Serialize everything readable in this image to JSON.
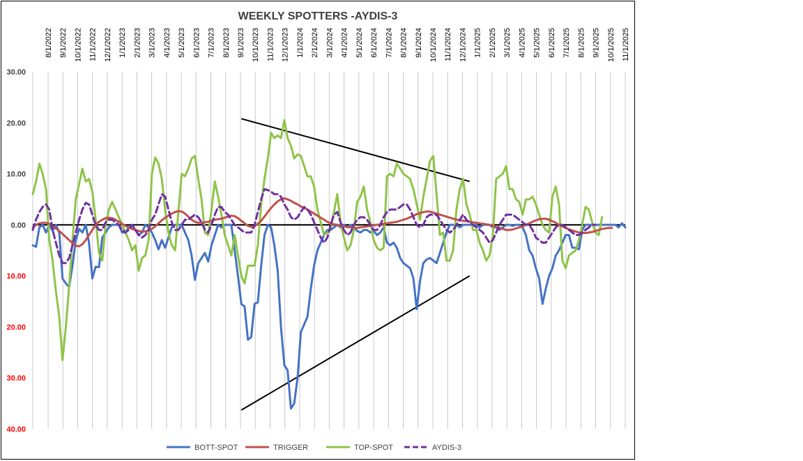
{
  "chart_data": {
    "type": "line",
    "title": "WEEKLY SPOTTERS -AYDIS-3",
    "y_tick_labels": [
      "30.00",
      "20.00",
      "10.00",
      "0.00",
      "10.00",
      "20.00",
      "30.00",
      "40.00"
    ],
    "y_tick_values": [
      30,
      20,
      10,
      0,
      -10,
      -20,
      -30,
      -40
    ],
    "y_tick_colors": [
      "#404040",
      "#404040",
      "#404040",
      "#404040",
      "#ff0000",
      "#ff0000",
      "#ff0000",
      "#ff0000"
    ],
    "ylim": [
      -40,
      30
    ],
    "x_tick_labels": [
      "8/1/2022",
      "9/1/2022",
      "10/1/2022",
      "11/1/2022",
      "12/1/2022",
      "1/1/2023",
      "2/1/2023",
      "3/1/2023",
      "4/1/2023",
      "5/1/2023",
      "6/1/2023",
      "7/1/2023",
      "8/1/2023",
      "9/1/2023",
      "10/1/2023",
      "11/1/2023",
      "12/1/2023",
      "1/1/2024",
      "2/1/2024",
      "3/1/2024",
      "4/1/2024",
      "5/1/2024",
      "6/1/2024",
      "7/1/2024",
      "8/1/2024",
      "9/1/2024",
      "10/1/2024",
      "11/1/2024",
      "12/1/2024",
      "1/1/2025",
      "2/1/2025",
      "3/1/2025",
      "4/1/2025",
      "5/1/2025",
      "6/1/2025",
      "7/1/2025",
      "8/1/2025",
      "9/1/2025",
      "10/1/2025",
      "11/1/2025"
    ],
    "grid": "vertical",
    "legend_position": "bottom",
    "series": [
      {
        "name": "BOTT-SPOT",
        "color": "#4472c4",
        "style": "solid",
        "values": [
          -4,
          -4.3,
          -0.5,
          0,
          -1.5,
          0,
          -1.2,
          0,
          -1.5,
          -10.5,
          -11.5,
          -12.2,
          -8,
          -3,
          -0.8,
          -1.5,
          0,
          -3.5,
          -10.5,
          -8.2,
          -8.3,
          -2.5,
          -1.5,
          -0.5,
          0,
          0,
          0,
          -1.5,
          -1.5,
          -0.5,
          0,
          -1,
          -2,
          -1.5,
          0,
          -0.5,
          -1.5,
          -3,
          -4.8,
          -3,
          -4.5,
          -2.5,
          -0.5,
          0,
          0,
          0,
          -1.5,
          -3,
          -6,
          -10.8,
          -7.5,
          -6.5,
          -5.5,
          -7.2,
          -4,
          -2,
          0,
          -0.5,
          0,
          0,
          0,
          -5,
          -10,
          -15.5,
          -16,
          -22.5,
          -22,
          -15.5,
          -15.2,
          -8,
          -2,
          0,
          -0.5,
          -4,
          -9,
          -20,
          -27.5,
          -28.5,
          -36,
          -35,
          -30,
          -21,
          -19.5,
          -18,
          -12.5,
          -8,
          -5,
          -3.5,
          -2,
          -1,
          -1,
          -0.5,
          0,
          -0.5,
          0,
          -0.5,
          0,
          -0.5,
          -1.2,
          -1.5,
          -1,
          -1,
          -1.5,
          -1.2,
          -2,
          -1.5,
          -0.5,
          -3.5,
          -4,
          -3.5,
          -4.5,
          -6.5,
          -7.5,
          -8,
          -8.5,
          -10.5,
          -16.5,
          -11,
          -7.5,
          -6.8,
          -6.5,
          -7,
          -7.5,
          -5.5,
          -3.5,
          -1.5,
          0,
          0,
          0,
          -0.5,
          0,
          0,
          0,
          0,
          0,
          -0.5,
          0,
          0,
          0,
          -0.5,
          -0.5,
          -1,
          -0.5,
          0,
          0,
          -0.2,
          0,
          0,
          -0.5,
          -2,
          -5,
          -6,
          -8.5,
          -10.5,
          -15.5,
          -12.5,
          -10,
          -8.5,
          -6,
          -5,
          -3.5,
          -2,
          -2,
          -4.5,
          -4.5,
          -4.8,
          -1,
          0,
          0,
          0,
          0,
          0,
          0,
          0,
          0,
          0,
          0,
          -0.5,
          0.3,
          -0.5
        ]
      },
      {
        "name": "TRIGGER",
        "color": "#c0504d",
        "style": "solid",
        "values": [
          -0.5,
          0,
          0.3,
          0.4,
          0.4,
          0.2,
          -0.2,
          -0.7,
          -1.2,
          -1.8,
          -2.4,
          -3.0,
          -3.6,
          -4.1,
          -4.2,
          -3.8,
          -3.0,
          -2.0,
          -1.0,
          0,
          0.6,
          1.0,
          1.3,
          1.4,
          1.3,
          1.0,
          0.6,
          0.2,
          -0.2,
          -0.5,
          -0.8,
          -1.0,
          -1.2,
          -1.3,
          -1.3,
          -1.1,
          -0.8,
          -0.3,
          0.3,
          0.9,
          1.4,
          1.8,
          2.2,
          2.5,
          2.7,
          2.6,
          2.2,
          1.6,
          1.0,
          0.6,
          0.4,
          0.4,
          0.5,
          0.6,
          0.8,
          1.0,
          1.1,
          1.2,
          1.4,
          1.6,
          1.8,
          1.7,
          1.3,
          0.8,
          0.3,
          -0.2,
          -0.4,
          -0.3,
          0.2,
          0.8,
          1.6,
          2.5,
          3.3,
          4.0,
          4.6,
          5.0,
          5.2,
          5.0,
          4.7,
          4.3,
          4.0,
          3.6,
          3.3,
          3.0,
          2.6,
          2.2,
          1.8,
          1.4,
          1.0,
          0.6,
          0.3,
          0.1,
          0,
          -0.2,
          -0.3,
          -0.4,
          -0.5,
          -0.6,
          -0.6,
          -0.5,
          -0.4,
          -0.3,
          -0.2,
          -0.1,
          0.0,
          0.1,
          0.2,
          0.3,
          0.4,
          0.5,
          0.6,
          0.8,
          1.0,
          1.2,
          1.5,
          1.8,
          2.1,
          2.3,
          2.5,
          2.6,
          2.6,
          2.4,
          2.2,
          2.0,
          1.8,
          1.6,
          1.4,
          1.2,
          1.0,
          0.9,
          0.8,
          0.7,
          0.6,
          0.5,
          0.4,
          0.3,
          0.2,
          0.1,
          0,
          -0.2,
          -0.4,
          -0.6,
          -0.8,
          -1.0,
          -1.0,
          -0.9,
          -0.7,
          -0.5,
          -0.3,
          0,
          0.3,
          0.6,
          0.9,
          1.1,
          1.2,
          1.2,
          1.0,
          0.7,
          0.4,
          0,
          -0.3,
          -0.6,
          -0.9,
          -1.1,
          -1.3,
          -1.5,
          -1.6,
          -1.6,
          -1.5,
          -1.4,
          -1.2,
          -1.0,
          -0.8,
          -0.7,
          -0.6,
          -0.6
        ]
      },
      {
        "name": "TOP-SPOT",
        "color": "#8ec449",
        "style": "solid",
        "values": [
          6,
          8.5,
          12,
          10,
          7,
          -3,
          -7,
          -13,
          -18,
          -26.5,
          -20,
          -12,
          -3,
          5,
          8,
          11,
          8.5,
          9,
          6.5,
          1,
          -5.5,
          -7,
          0,
          3,
          4.5,
          3,
          1.5,
          0,
          -1.5,
          -3,
          -5,
          -4,
          -9,
          -6.5,
          -6,
          -3,
          10,
          13.2,
          12,
          9,
          3,
          -1.5,
          -4,
          -5,
          2.5,
          10,
          9.5,
          11,
          13,
          13.5,
          9,
          5,
          -1.5,
          -2,
          3,
          8.5,
          5.5,
          2,
          -2,
          -4,
          -6,
          -2,
          -6,
          -10,
          -11.5,
          -8,
          -8,
          -8,
          -4,
          4,
          9,
          13,
          18,
          17,
          17.5,
          17,
          20.5,
          17,
          15.5,
          13,
          13.8,
          13.5,
          11.5,
          9.5,
          9.5,
          7.5,
          3,
          0.5,
          -2,
          -1.5,
          -0.5,
          2.5,
          6,
          0.5,
          -2.5,
          -5,
          -4,
          -1,
          4.5,
          5.5,
          7.5,
          3,
          0.5,
          -3,
          -4.5,
          -5,
          -4.5,
          9.5,
          10,
          9.5,
          12,
          11,
          10,
          9.5,
          9,
          7,
          4,
          1,
          5.5,
          9,
          12.5,
          13.5,
          6,
          -2,
          -1.5,
          -7,
          -7,
          -5,
          3,
          7,
          9,
          4,
          2,
          -1,
          -1,
          -3.5,
          -5,
          -7,
          -6,
          -2,
          9,
          9.5,
          10,
          11.5,
          7,
          7,
          5,
          4.5,
          2,
          5,
          5,
          5.5,
          4,
          2,
          0,
          -1,
          -1.5,
          5.5,
          7.5,
          4,
          -7,
          -8.5,
          -6,
          -5.5,
          -5,
          -3,
          0,
          3.5,
          3,
          0.5,
          -1.5,
          -2,
          1.5
        ]
      },
      {
        "name": "AYDIS-3",
        "color": "#7030a0",
        "style": "dashed",
        "values": [
          -1,
          1,
          2.5,
          3.5,
          4,
          3,
          -1,
          -3.5,
          -6,
          -7.5,
          -7.5,
          -6.5,
          -4,
          -1.5,
          1,
          3,
          4.3,
          4,
          2,
          0,
          -1,
          -1,
          0.5,
          1,
          1,
          0.5,
          0,
          -1,
          -1.5,
          -1,
          0,
          -1,
          -2,
          -2.5,
          -2,
          -1,
          1,
          2,
          4,
          6,
          5.5,
          3,
          0.5,
          -1,
          -1,
          0,
          1,
          1,
          1.5,
          2,
          1.5,
          0.5,
          -1,
          -1.5,
          0,
          2,
          3.5,
          3.5,
          2.5,
          2,
          1,
          0,
          -0.5,
          -1,
          -1.5,
          -1.5,
          -1.5,
          0,
          2.5,
          5,
          7,
          6.8,
          6.5,
          6,
          6,
          5.5,
          4,
          3,
          1.5,
          1,
          1.5,
          2.5,
          3.5,
          3,
          2,
          0.5,
          -1,
          -2.5,
          -3.5,
          -2.5,
          0,
          2,
          2.5,
          0.5,
          -1,
          -2,
          -1.5,
          0,
          1,
          1.5,
          1.5,
          1,
          0,
          -1,
          -1,
          0,
          1.5,
          2.5,
          3,
          3,
          3,
          3.5,
          4,
          4,
          3,
          1.5,
          0,
          -0.5,
          0,
          1.5,
          2,
          2,
          2,
          1,
          0,
          -1,
          -1.5,
          -1,
          0,
          1,
          2,
          1,
          0.5,
          0,
          -0.5,
          -1,
          -1.5,
          -2.5,
          -3.5,
          -3,
          -1.5,
          0,
          1,
          2,
          2,
          2,
          1.5,
          1,
          0.5,
          0,
          0,
          -1,
          -2.5,
          -3,
          -3.5,
          -3.5,
          -2.5,
          -1.5,
          -0.5,
          0,
          0,
          -0.5,
          -1,
          -1.5,
          -2,
          -2,
          -1.5,
          -1,
          -0.5,
          0,
          0
        ]
      }
    ],
    "annotations": [
      {
        "type": "trendline",
        "from": [
          63,
          20.8
        ],
        "to": [
          132,
          8.5
        ]
      },
      {
        "type": "trendline",
        "from": [
          63,
          -36.3
        ],
        "to": [
          132,
          -10
        ]
      }
    ]
  }
}
